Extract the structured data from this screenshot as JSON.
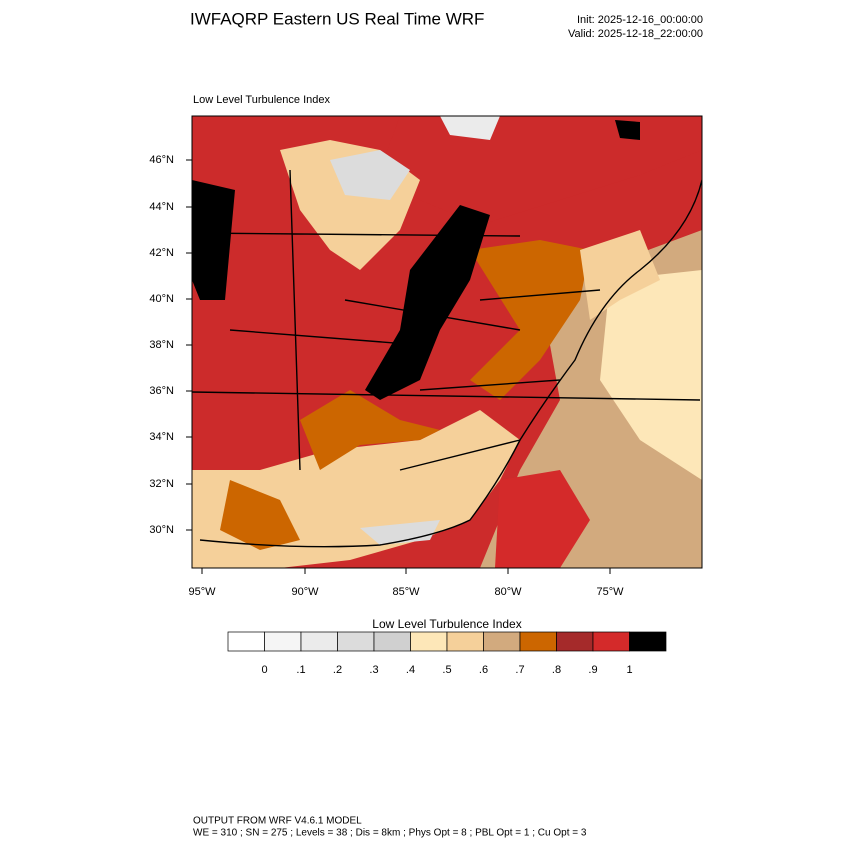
{
  "header": {
    "title": "IWFAQRP Eastern US Real Time WRF",
    "init": "Init: 2025-12-16_00:00:00",
    "valid": "Valid: 2025-12-18_22:00:00"
  },
  "map": {
    "title": "Low Level Turbulence Index",
    "lat_labels": [
      "46°N",
      "44°N",
      "42°N",
      "40°N",
      "38°N",
      "36°N",
      "34°N",
      "32°N",
      "30°N"
    ],
    "lon_labels": [
      "95°W",
      "90°W",
      "85°W",
      "80°W",
      "75°W"
    ]
  },
  "colorbar": {
    "title": "Low Level Turbulence Index",
    "colors": [
      "#ffffff",
      "#f5f5f5",
      "#ebebeb",
      "#dcdcdc",
      "#d0d0d0",
      "#fde7b8",
      "#f5d09a",
      "#d2aa7e",
      "#cc6600",
      "#a52a2a",
      "#d42a2a",
      "#000000"
    ],
    "ticks": [
      0,
      {
        "value": 0.1,
        "label": ".1"
      },
      {
        "value": 0.2,
        "label": ".2"
      },
      {
        "value": 0.3,
        "label": ".3"
      },
      {
        "value": 0.4,
        "label": ".4"
      },
      {
        "value": 0.5,
        "label": ".5"
      },
      {
        "value": 0.6,
        "label": ".6"
      },
      {
        "value": 0.7,
        "label": ".7"
      },
      {
        "value": 0.8,
        "label": ".8"
      },
      {
        "value": 0.9,
        "label": ".9"
      },
      1
    ]
  },
  "footer": {
    "line1": "OUTPUT FROM WRF V4.6.1 MODEL",
    "line2": "WE = 310 ; SN = 275 ; Levels = 38 ; Dis = 8km ; Phys Opt = 8 ; PBL Opt = 1 ; Cu Opt = 3"
  }
}
